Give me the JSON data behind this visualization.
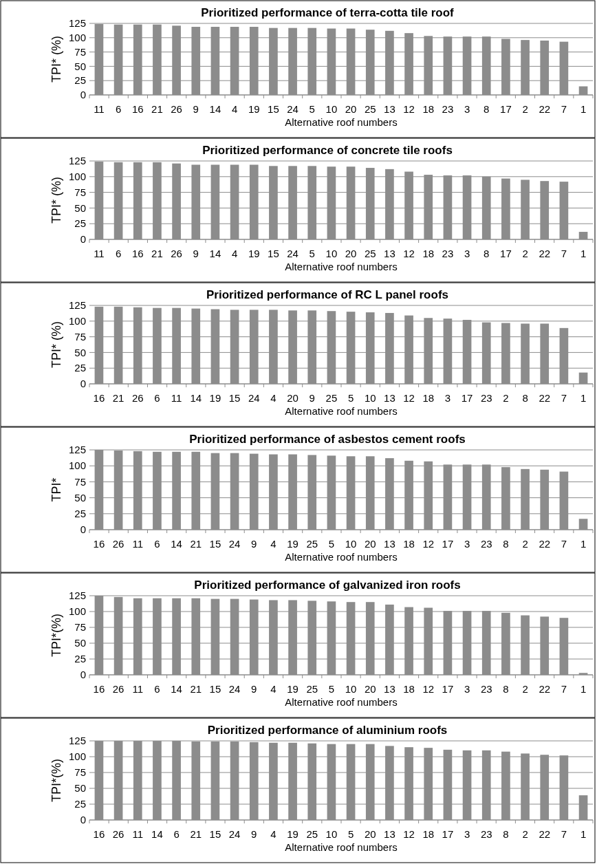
{
  "chart_data": [
    {
      "type": "bar",
      "title": "Prioritized performance of terra-cotta tile roof",
      "xlabel": "Alternative roof numbers",
      "ylabel": "TPI* (%)",
      "categories": [
        "11",
        "6",
        "16",
        "21",
        "26",
        "9",
        "14",
        "4",
        "19",
        "15",
        "24",
        "5",
        "10",
        "20",
        "25",
        "13",
        "12",
        "18",
        "23",
        "3",
        "8",
        "17",
        "2",
        "22",
        "7",
        "1"
      ],
      "values": [
        124,
        123,
        123,
        123,
        121,
        119,
        119,
        119,
        119,
        117,
        117,
        117,
        116,
        116,
        114,
        112,
        108,
        103,
        102,
        102,
        102,
        98,
        96,
        95,
        93,
        15
      ],
      "color": "#8c8c8c",
      "ylim": [
        0,
        125
      ],
      "yticks": [
        0,
        25,
        50,
        75,
        100,
        125
      ],
      "grid": "y"
    },
    {
      "type": "bar",
      "title": "Prioritized performance of concrete tile roofs",
      "xlabel": "Alternative roof numbers",
      "ylabel": "TPI* (%)",
      "categories": [
        "11",
        "6",
        "16",
        "21",
        "26",
        "9",
        "14",
        "4",
        "19",
        "15",
        "24",
        "5",
        "10",
        "20",
        "25",
        "13",
        "12",
        "18",
        "23",
        "3",
        "8",
        "17",
        "2",
        "22",
        "7",
        "1"
      ],
      "values": [
        124,
        123,
        123,
        123,
        121,
        119,
        119,
        119,
        119,
        117,
        117,
        117,
        116,
        116,
        114,
        112,
        108,
        103,
        102,
        102,
        100,
        97,
        95,
        93,
        92,
        12
      ],
      "color": "#8c8c8c",
      "ylim": [
        0,
        125
      ],
      "yticks": [
        0,
        25,
        50,
        75,
        100,
        125
      ],
      "grid": "y"
    },
    {
      "type": "bar",
      "title": "Prioritized performance of RC L panel roofs",
      "xlabel": "Alternative roof numbers",
      "ylabel": "TPI* (%)",
      "categories": [
        "16",
        "21",
        "26",
        "6",
        "11",
        "14",
        "19",
        "15",
        "24",
        "4",
        "20",
        "9",
        "25",
        "5",
        "10",
        "13",
        "12",
        "18",
        "3",
        "17",
        "23",
        "2",
        "8",
        "22",
        "7",
        "1"
      ],
      "values": [
        123,
        123,
        122,
        121,
        121,
        120,
        119,
        118,
        118,
        118,
        117,
        117,
        116,
        115,
        114,
        113,
        109,
        105,
        104,
        102,
        98,
        97,
        96,
        96,
        89,
        18
      ],
      "color": "#8c8c8c",
      "ylim": [
        0,
        125
      ],
      "yticks": [
        0,
        25,
        50,
        75,
        100,
        125
      ],
      "grid": "y"
    },
    {
      "type": "bar",
      "title": "Prioritized performance of asbestos cement roofs",
      "xlabel": "Alternative roof numbers",
      "ylabel": "TPI*",
      "categories": [
        "16",
        "26",
        "11",
        "6",
        "14",
        "21",
        "15",
        "24",
        "9",
        "4",
        "19",
        "25",
        "5",
        "10",
        "20",
        "13",
        "18",
        "12",
        "17",
        "3",
        "23",
        "8",
        "2",
        "22",
        "7",
        "1"
      ],
      "values": [
        125,
        124,
        123,
        122,
        122,
        122,
        120,
        120,
        119,
        118,
        118,
        117,
        116,
        115,
        115,
        112,
        108,
        107,
        102,
        102,
        102,
        98,
        95,
        94,
        91,
        17
      ],
      "color": "#8c8c8c",
      "ylim": [
        0,
        125
      ],
      "yticks": [
        0,
        25,
        50,
        75,
        100,
        125
      ],
      "grid": "y"
    },
    {
      "type": "bar",
      "title": "Prioritized performance of galvanized iron  roofs",
      "xlabel": "Alternative roof numbers",
      "ylabel": "TPI*(%)",
      "categories": [
        "16",
        "26",
        "11",
        "6",
        "14",
        "21",
        "15",
        "24",
        "9",
        "4",
        "19",
        "25",
        "5",
        "10",
        "20",
        "13",
        "18",
        "12",
        "17",
        "3",
        "23",
        "8",
        "2",
        "22",
        "7",
        "1"
      ],
      "values": [
        125,
        123,
        121,
        121,
        121,
        121,
        120,
        120,
        119,
        118,
        118,
        117,
        116,
        115,
        115,
        111,
        107,
        106,
        101,
        101,
        101,
        98,
        94,
        92,
        90,
        3
      ],
      "color": "#8c8c8c",
      "ylim": [
        0,
        125
      ],
      "yticks": [
        0,
        25,
        50,
        75,
        100,
        125
      ],
      "grid": "y"
    },
    {
      "type": "bar",
      "title": "Prioritized performance of aluminium roofs",
      "xlabel": "Alternative roof numbers",
      "ylabel": "TPI*(%)",
      "categories": [
        "16",
        "26",
        "11",
        "14",
        "6",
        "21",
        "15",
        "24",
        "9",
        "4",
        "19",
        "25",
        "10",
        "5",
        "20",
        "13",
        "12",
        "18",
        "17",
        "3",
        "23",
        "8",
        "2",
        "22",
        "7",
        "1"
      ],
      "values": [
        125,
        125,
        125,
        125,
        125,
        124,
        124,
        124,
        123,
        122,
        122,
        121,
        120,
        120,
        120,
        117,
        115,
        114,
        111,
        110,
        110,
        108,
        105,
        103,
        102,
        39
      ],
      "color": "#8c8c8c",
      "ylim": [
        0,
        125
      ],
      "yticks": [
        0,
        25,
        50,
        75,
        100,
        125
      ],
      "grid": "y"
    }
  ]
}
